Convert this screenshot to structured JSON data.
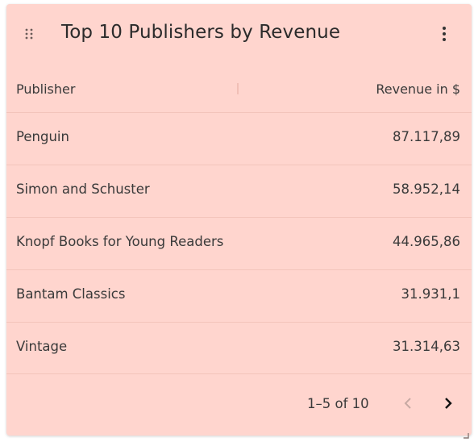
{
  "widget": {
    "title": "Top 10 Publishers by Revenue"
  },
  "table": {
    "columns": [
      "Publisher",
      "Revenue in $"
    ],
    "rows": [
      {
        "publisher": "Penguin",
        "revenue": "87.117,89"
      },
      {
        "publisher": "Simon and Schuster",
        "revenue": "58.952,14"
      },
      {
        "publisher": "Knopf Books for Young Readers",
        "revenue": "44.965,86"
      },
      {
        "publisher": "Bantam Classics",
        "revenue": "31.931,1"
      },
      {
        "publisher": "Vintage",
        "revenue": "31.314,63"
      }
    ]
  },
  "pagination": {
    "range_label": "1–5 of 10"
  },
  "icons": {
    "drag": "drag-handle-icon",
    "menu": "more-vertical-icon",
    "prev": "chevron-left-icon",
    "next": "chevron-right-icon",
    "resize": "resize-corner-icon"
  },
  "colors": {
    "card_background": "#ffd5ce",
    "divider": "#f3c4bb",
    "text": "#3a3a3a",
    "disabled": "#c7a9a3"
  }
}
